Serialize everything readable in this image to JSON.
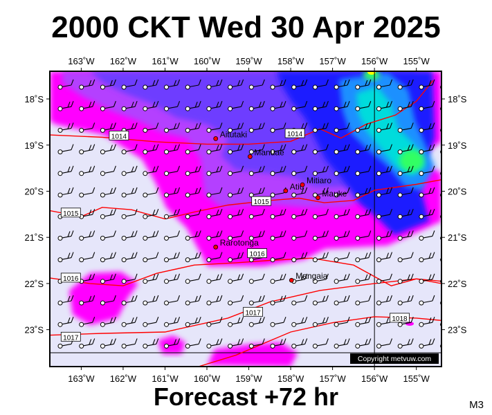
{
  "title": "2000 CKT Wed 30 Apr 2025",
  "footer": "Forecast +72 hr",
  "model_label": "M3",
  "copyright": "Copyright metvuw.com",
  "map": {
    "lon_range": [
      -163.75,
      -154.4
    ],
    "lat_range": [
      -23.8,
      -17.4
    ],
    "lon_ticks": [
      {
        "lon": -163,
        "label": "163˚W"
      },
      {
        "lon": -162,
        "label": "162˚W"
      },
      {
        "lon": -161,
        "label": "161˚W"
      },
      {
        "lon": -160,
        "label": "160˚W"
      },
      {
        "lon": -159,
        "label": "159˚W"
      },
      {
        "lon": -158,
        "label": "158˚W"
      },
      {
        "lon": -157,
        "label": "157˚W"
      },
      {
        "lon": -156,
        "label": "156˚W"
      },
      {
        "lon": -155,
        "label": "155˚W"
      }
    ],
    "lat_ticks": [
      {
        "lat": -18,
        "label": "18˚S"
      },
      {
        "lat": -19,
        "label": "19˚S"
      },
      {
        "lat": -20,
        "label": "20˚S"
      },
      {
        "lat": -21,
        "label": "21˚S"
      },
      {
        "lat": -22,
        "label": "22˚S"
      },
      {
        "lat": -23,
        "label": "23˚S"
      }
    ],
    "meridian_line_lon": -156,
    "parallel_line_lat": -23.5,
    "places": [
      {
        "name": "Aitutaki",
        "lon": -159.79,
        "lat": -18.86
      },
      {
        "name": "Manuae",
        "lon": -158.97,
        "lat": -19.25
      },
      {
        "name": "Atiu",
        "lon": -158.12,
        "lat": -19.99
      },
      {
        "name": "Mitiaro",
        "lon": -157.72,
        "lat": -19.86
      },
      {
        "name": "Mauke",
        "lon": -157.35,
        "lat": -20.14
      },
      {
        "name": "Rarotonga",
        "lon": -159.79,
        "lat": -21.21
      },
      {
        "name": "Mangaia",
        "lon": -157.98,
        "lat": -21.93
      }
    ],
    "isobars": [
      {
        "label": "1014",
        "label_at": [
          -162.1,
          -18.8
        ],
        "points": [
          [
            -163.75,
            -18.78
          ],
          [
            -162.5,
            -18.83
          ],
          [
            -161.2,
            -18.93
          ],
          [
            -160,
            -18.98
          ],
          [
            -159,
            -18.98
          ],
          [
            -158,
            -18.92
          ],
          [
            -157.3,
            -18.65
          ],
          [
            -156.8,
            -18.85
          ],
          [
            -156.2,
            -18.55
          ],
          [
            -155.5,
            -18.35
          ],
          [
            -155,
            -18.05
          ],
          [
            -154.6,
            -17.6
          ]
        ]
      },
      {
        "label": "1014",
        "label_at": [
          -157.9,
          -18.75
        ]
      },
      {
        "label": "1015",
        "label_at": [
          -163.25,
          -20.47
        ],
        "points": [
          [
            -163.75,
            -20.42
          ],
          [
            -163,
            -20.55
          ],
          [
            -162.5,
            -20.35
          ],
          [
            -161.8,
            -20.4
          ],
          [
            -161,
            -20.6
          ],
          [
            -160.3,
            -20.45
          ],
          [
            -159.5,
            -20.3
          ],
          [
            -158.5,
            -20.2
          ],
          [
            -157.8,
            -20.15
          ],
          [
            -157.2,
            -20.25
          ],
          [
            -156.5,
            -20.2
          ],
          [
            -156,
            -19.98
          ],
          [
            -155,
            -19.85
          ],
          [
            -154.4,
            -19.75
          ]
        ]
      },
      {
        "label": "1015",
        "label_at": [
          -158.7,
          -20.22
        ]
      },
      {
        "label": "1016",
        "label_at": [
          -163.25,
          -21.88
        ],
        "points": [
          [
            -163.75,
            -21.88
          ],
          [
            -162.8,
            -22
          ],
          [
            -162,
            -22.05
          ],
          [
            -161.2,
            -21.78
          ],
          [
            -160.3,
            -21.6
          ],
          [
            -159.3,
            -21.55
          ],
          [
            -158.5,
            -21.5
          ],
          [
            -157.5,
            -21.45
          ],
          [
            -156.5,
            -21.6
          ],
          [
            -155.6,
            -22.05
          ],
          [
            -155,
            -21.9
          ],
          [
            -154.4,
            -21.95
          ]
        ]
      },
      {
        "label": "1016",
        "label_at": [
          -158.8,
          -21.35
        ]
      },
      {
        "label": "1017",
        "label_at": [
          -163.25,
          -23.16
        ],
        "points": [
          [
            -163.75,
            -23.12
          ],
          [
            -162.5,
            -23.08
          ],
          [
            -161,
            -23.05
          ],
          [
            -159.5,
            -22.75
          ],
          [
            -158.5,
            -22.4
          ],
          [
            -157.3,
            -22.15
          ],
          [
            -156,
            -22
          ],
          [
            -155,
            -21.9
          ],
          [
            -154.4,
            -22
          ]
        ]
      },
      {
        "label": "1017",
        "label_at": [
          -158.9,
          -22.62
        ]
      },
      {
        "label": "1018",
        "label_at": [
          -155.4,
          -22.75
        ],
        "points": [
          [
            -160.2,
            -23.8
          ],
          [
            -159.3,
            -23.55
          ],
          [
            -158,
            -23.05
          ],
          [
            -157,
            -22.85
          ],
          [
            -156,
            -22.72
          ],
          [
            -155,
            -22.75
          ],
          [
            -154.4,
            -22.8
          ]
        ]
      }
    ]
  }
}
